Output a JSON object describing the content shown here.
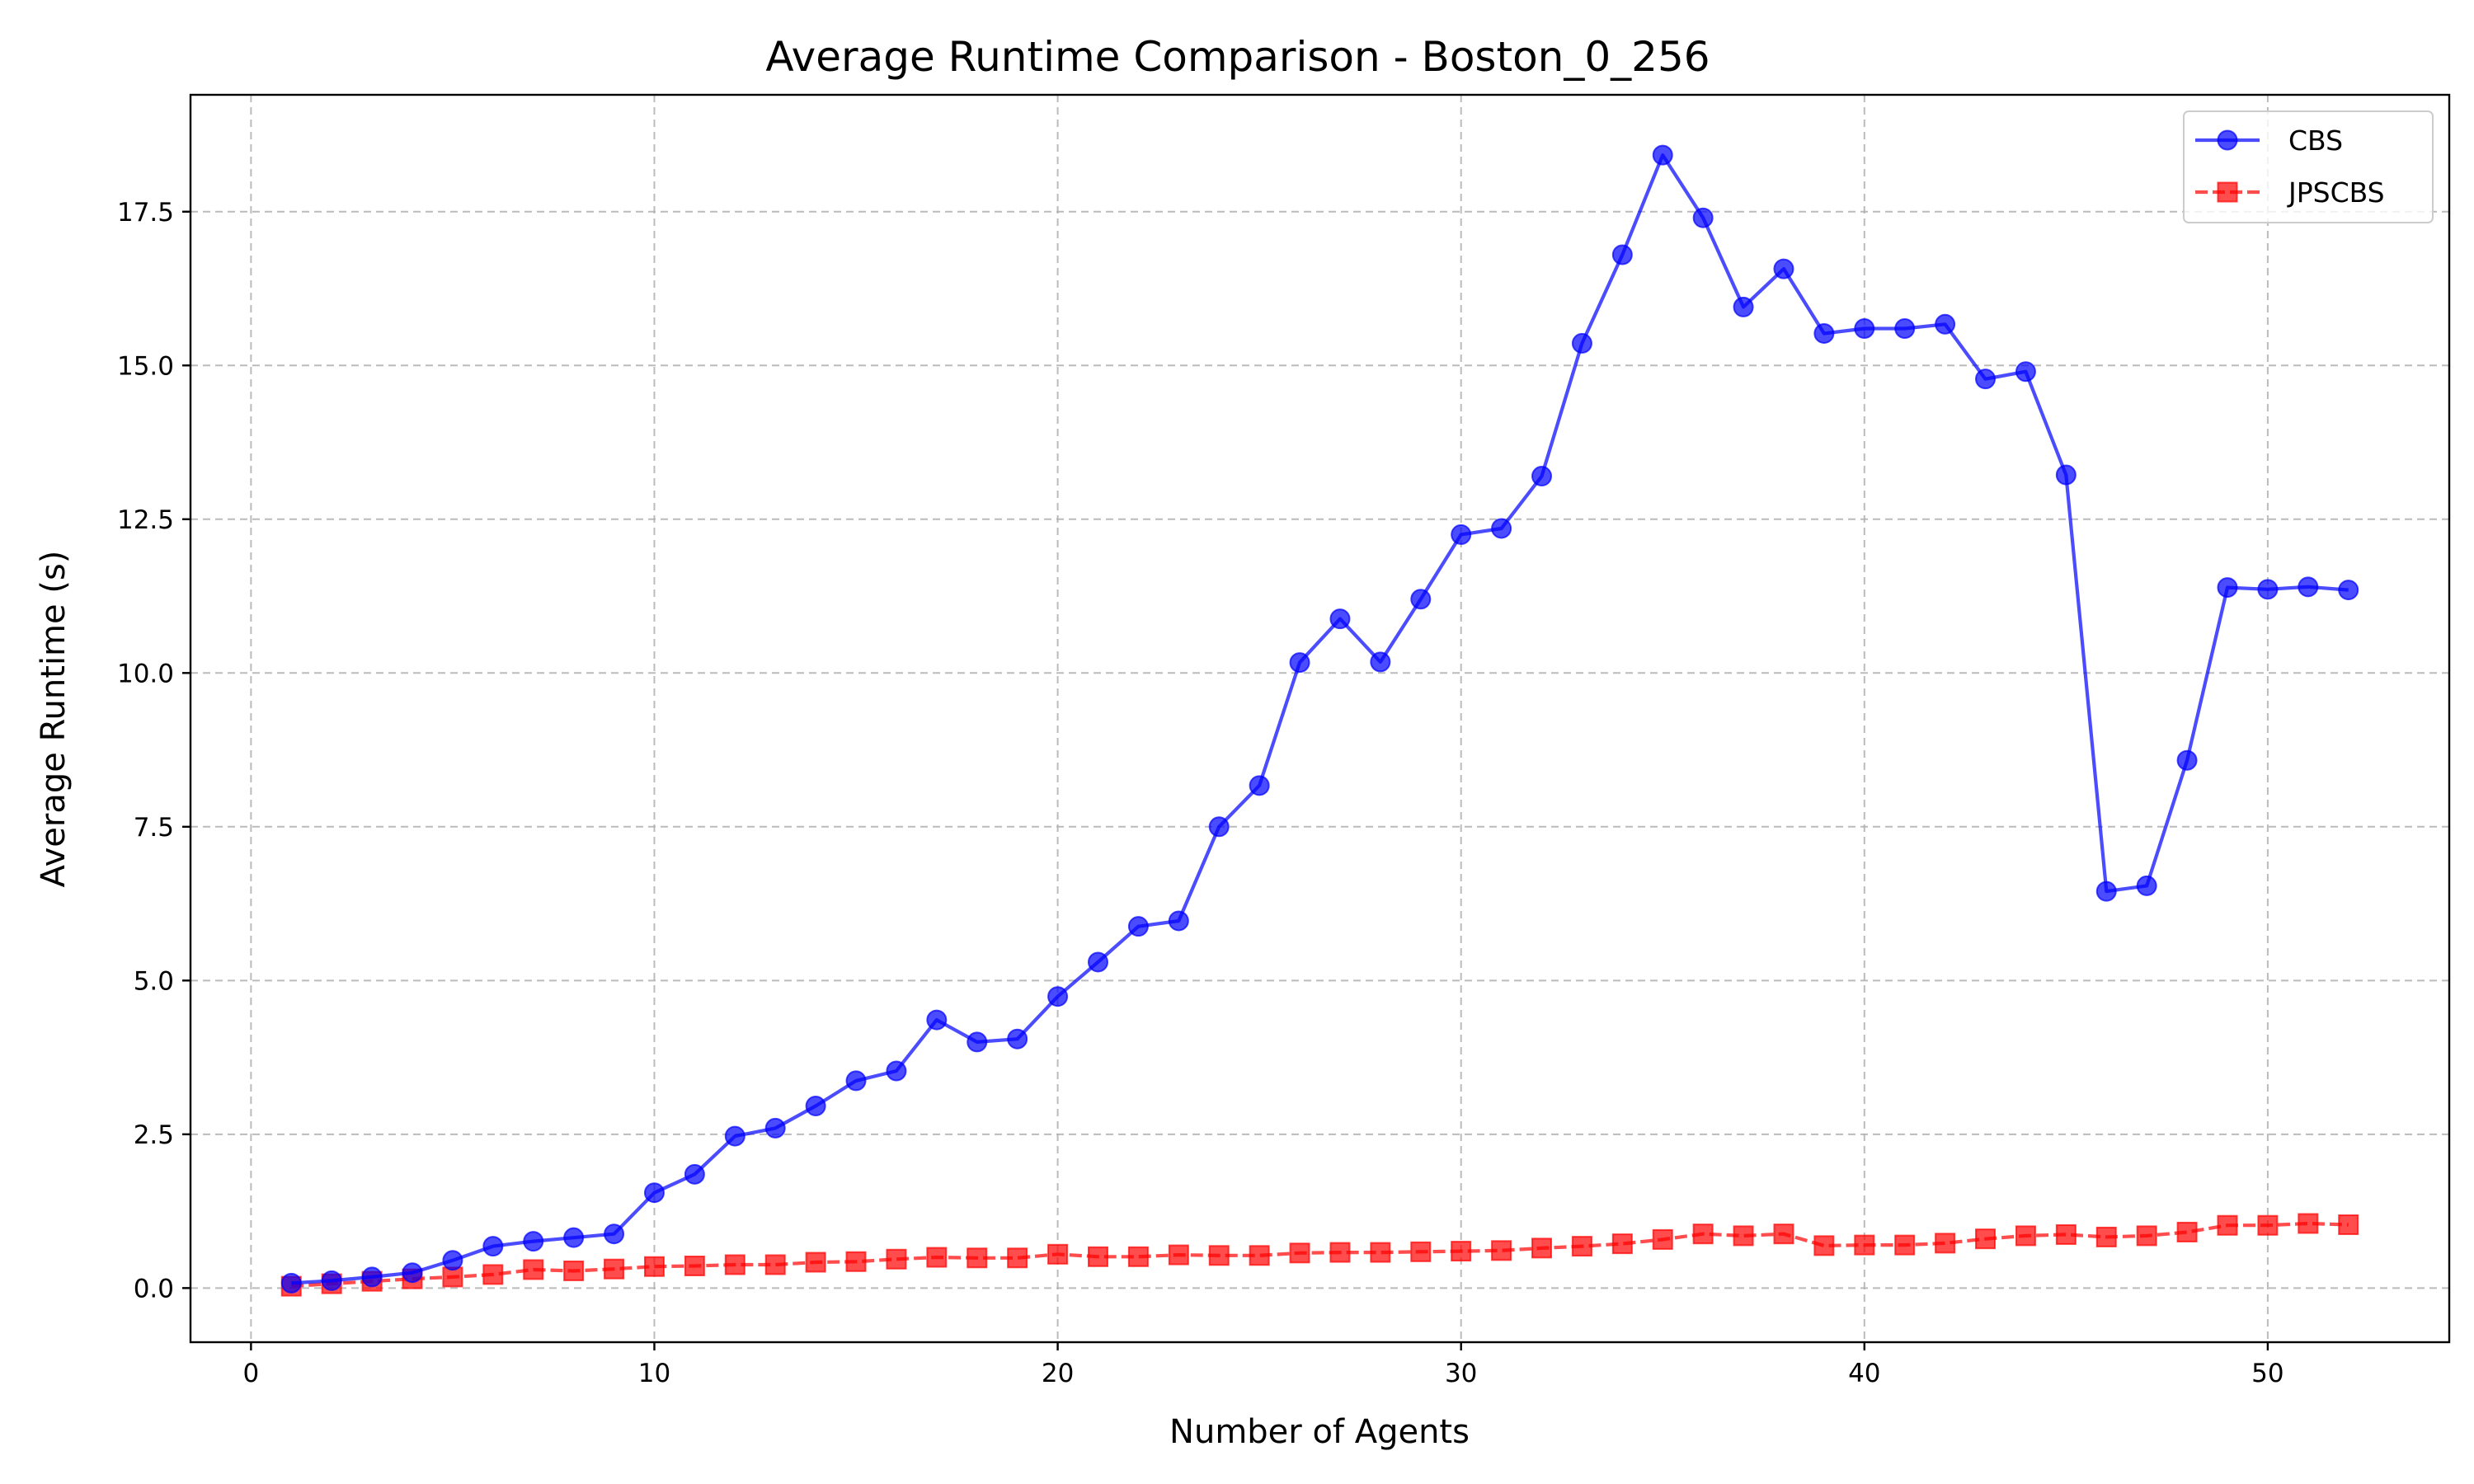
{
  "chart_data": {
    "type": "line",
    "title": "Average Runtime Comparison - Boston_0_256",
    "xlabel": "Number of Agents",
    "ylabel": "Average Runtime (s)",
    "xlim": [
      -1.5,
      54.5
    ],
    "ylim": [
      -0.88,
      19.4
    ],
    "xticks": [
      0,
      10,
      20,
      30,
      40,
      50
    ],
    "xtick_labels": [
      "0",
      "10",
      "20",
      "30",
      "40",
      "50"
    ],
    "yticks": [
      0,
      2.5,
      5,
      7.5,
      10,
      12.5,
      15,
      17.5
    ],
    "ytick_labels": [
      "0.0",
      "2.5",
      "5.0",
      "7.5",
      "10.0",
      "12.5",
      "15.0",
      "17.5"
    ],
    "grid": true,
    "legend_position": "top-right",
    "x": [
      1,
      2,
      3,
      4,
      5,
      6,
      7,
      8,
      9,
      10,
      11,
      12,
      13,
      14,
      15,
      16,
      17,
      18,
      19,
      20,
      21,
      22,
      23,
      24,
      25,
      26,
      27,
      28,
      29,
      30,
      31,
      32,
      33,
      34,
      35,
      36,
      37,
      38,
      39,
      40,
      41,
      42,
      43,
      44,
      45,
      46,
      47,
      48,
      49,
      50,
      51,
      52
    ],
    "series": [
      {
        "name": "CBS",
        "color": "#0000ff",
        "marker": "circle",
        "line_style": "solid",
        "values": [
          0.08,
          0.12,
          0.18,
          0.25,
          0.45,
          0.68,
          0.76,
          0.82,
          0.88,
          1.55,
          1.85,
          2.47,
          2.6,
          2.96,
          3.37,
          3.53,
          4.36,
          4.0,
          4.05,
          4.74,
          5.3,
          5.88,
          5.97,
          7.5,
          8.17,
          10.17,
          10.88,
          10.18,
          11.2,
          12.25,
          12.35,
          13.2,
          15.36,
          16.8,
          18.42,
          17.4,
          15.95,
          16.57,
          15.52,
          15.6,
          15.6,
          15.67,
          14.78,
          14.9,
          13.22,
          6.45,
          6.54,
          8.58,
          11.39,
          11.36,
          11.4,
          11.35
        ]
      },
      {
        "name": "JPSCBS",
        "color": "#ff0000",
        "marker": "square",
        "line_style": "dashed",
        "values": [
          0.03,
          0.07,
          0.11,
          0.15,
          0.18,
          0.22,
          0.3,
          0.28,
          0.31,
          0.35,
          0.36,
          0.38,
          0.38,
          0.42,
          0.43,
          0.47,
          0.5,
          0.49,
          0.49,
          0.55,
          0.51,
          0.51,
          0.54,
          0.53,
          0.53,
          0.57,
          0.58,
          0.58,
          0.59,
          0.6,
          0.61,
          0.65,
          0.68,
          0.72,
          0.79,
          0.88,
          0.85,
          0.88,
          0.69,
          0.7,
          0.7,
          0.73,
          0.8,
          0.85,
          0.87,
          0.83,
          0.85,
          0.91,
          1.02,
          1.02,
          1.05,
          1.03
        ]
      }
    ]
  }
}
